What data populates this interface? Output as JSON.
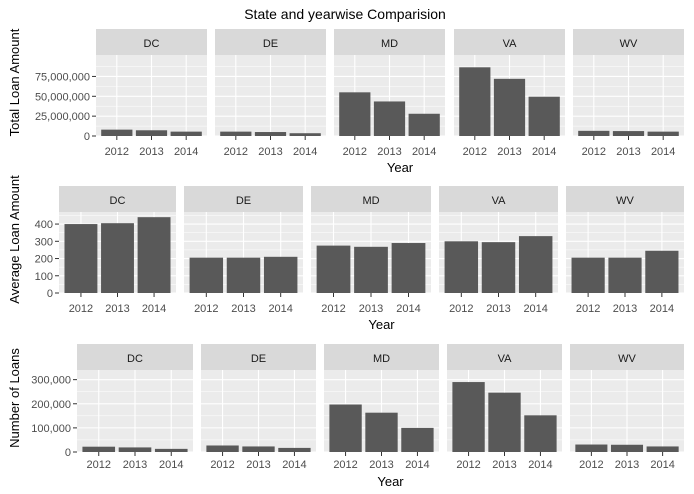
{
  "title": "State and yearwise Comparision",
  "chart_data": [
    {
      "type": "bar",
      "facets": [
        "DC",
        "DE",
        "MD",
        "VA",
        "WV"
      ],
      "categories": [
        "2012",
        "2013",
        "2014"
      ],
      "xlabel": "Year",
      "ylabel": "Total Loan Amount",
      "ylim": [
        0,
        102000000
      ],
      "yticks": [
        0,
        25000000,
        50000000,
        75000000
      ],
      "ytick_labels": [
        "0",
        "25,000,000",
        "50,000,000",
        "75,000,000"
      ],
      "series": [
        {
          "facet": "DC",
          "values": [
            8000000,
            7200000,
            5500000
          ]
        },
        {
          "facet": "DE",
          "values": [
            5500000,
            5000000,
            3500000
          ]
        },
        {
          "facet": "MD",
          "values": [
            55000000,
            43500000,
            28000000
          ]
        },
        {
          "facet": "VA",
          "values": [
            86500000,
            72000000,
            49500000
          ]
        },
        {
          "facet": "WV",
          "values": [
            6500000,
            6200000,
            5500000
          ]
        }
      ]
    },
    {
      "type": "bar",
      "facets": [
        "DC",
        "DE",
        "MD",
        "VA",
        "WV"
      ],
      "categories": [
        "2012",
        "2013",
        "2014"
      ],
      "xlabel": "Year",
      "ylabel": "Average Loan Amount",
      "ylim": [
        0,
        470
      ],
      "yticks": [
        0,
        100,
        200,
        300,
        400
      ],
      "ytick_labels": [
        "0",
        "100",
        "200",
        "300",
        "400"
      ],
      "series": [
        {
          "facet": "DC",
          "values": [
            400,
            405,
            440
          ]
        },
        {
          "facet": "DE",
          "values": [
            205,
            205,
            210
          ]
        },
        {
          "facet": "MD",
          "values": [
            275,
            268,
            290
          ]
        },
        {
          "facet": "VA",
          "values": [
            300,
            295,
            330
          ]
        },
        {
          "facet": "WV",
          "values": [
            205,
            205,
            245
          ]
        }
      ]
    },
    {
      "type": "bar",
      "facets": [
        "DC",
        "DE",
        "MD",
        "VA",
        "WV"
      ],
      "categories": [
        "2012",
        "2013",
        "2014"
      ],
      "xlabel": "Year",
      "ylabel": "Number of Loans",
      "ylim": [
        0,
        340000
      ],
      "yticks": [
        0,
        100000,
        200000,
        300000
      ],
      "ytick_labels": [
        "0",
        "100,000",
        "200,000",
        "300,000"
      ],
      "series": [
        {
          "facet": "DC",
          "values": [
            22000,
            19000,
            13000
          ]
        },
        {
          "facet": "DE",
          "values": [
            27000,
            23000,
            17000
          ]
        },
        {
          "facet": "MD",
          "values": [
            197000,
            163000,
            100000
          ]
        },
        {
          "facet": "VA",
          "values": [
            290000,
            246000,
            152000
          ]
        },
        {
          "facet": "WV",
          "values": [
            31000,
            30000,
            23000
          ]
        }
      ]
    }
  ],
  "colors": {
    "panel_background": "#ebebeb",
    "strip_background": "#d9d9d9",
    "bar": "#595959",
    "grid_major": "#ffffff",
    "text": "#000000",
    "tick_text": "#4d4d4d"
  }
}
